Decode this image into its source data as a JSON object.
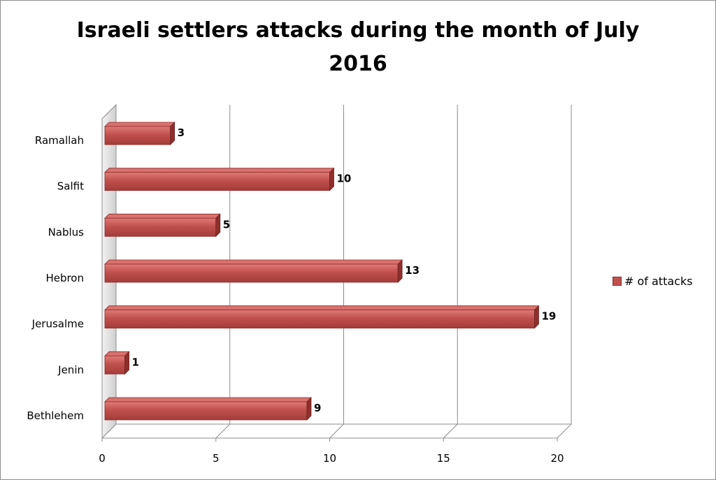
{
  "chart_data": {
    "type": "bar",
    "orientation": "horizontal",
    "title": "Israeli settlers attacks during the month of July\n2016",
    "categories": [
      "Ramallah",
      "Salfit",
      "Nablus",
      "Hebron",
      "Jerusalme",
      "Jenin",
      "Bethlehem"
    ],
    "series": [
      {
        "name": "# of attacks",
        "values": [
          3,
          10,
          5,
          13,
          19,
          1,
          9
        ],
        "color": "#c0504d"
      }
    ],
    "data_labels": [
      "3",
      "10",
      "5",
      "13",
      "19",
      "1",
      "9"
    ],
    "xlim": [
      0,
      20
    ],
    "x_ticks": [
      "0",
      "5",
      "10",
      "15",
      "20"
    ],
    "grid": true,
    "legend_position": "right",
    "style": "3d-bar"
  }
}
